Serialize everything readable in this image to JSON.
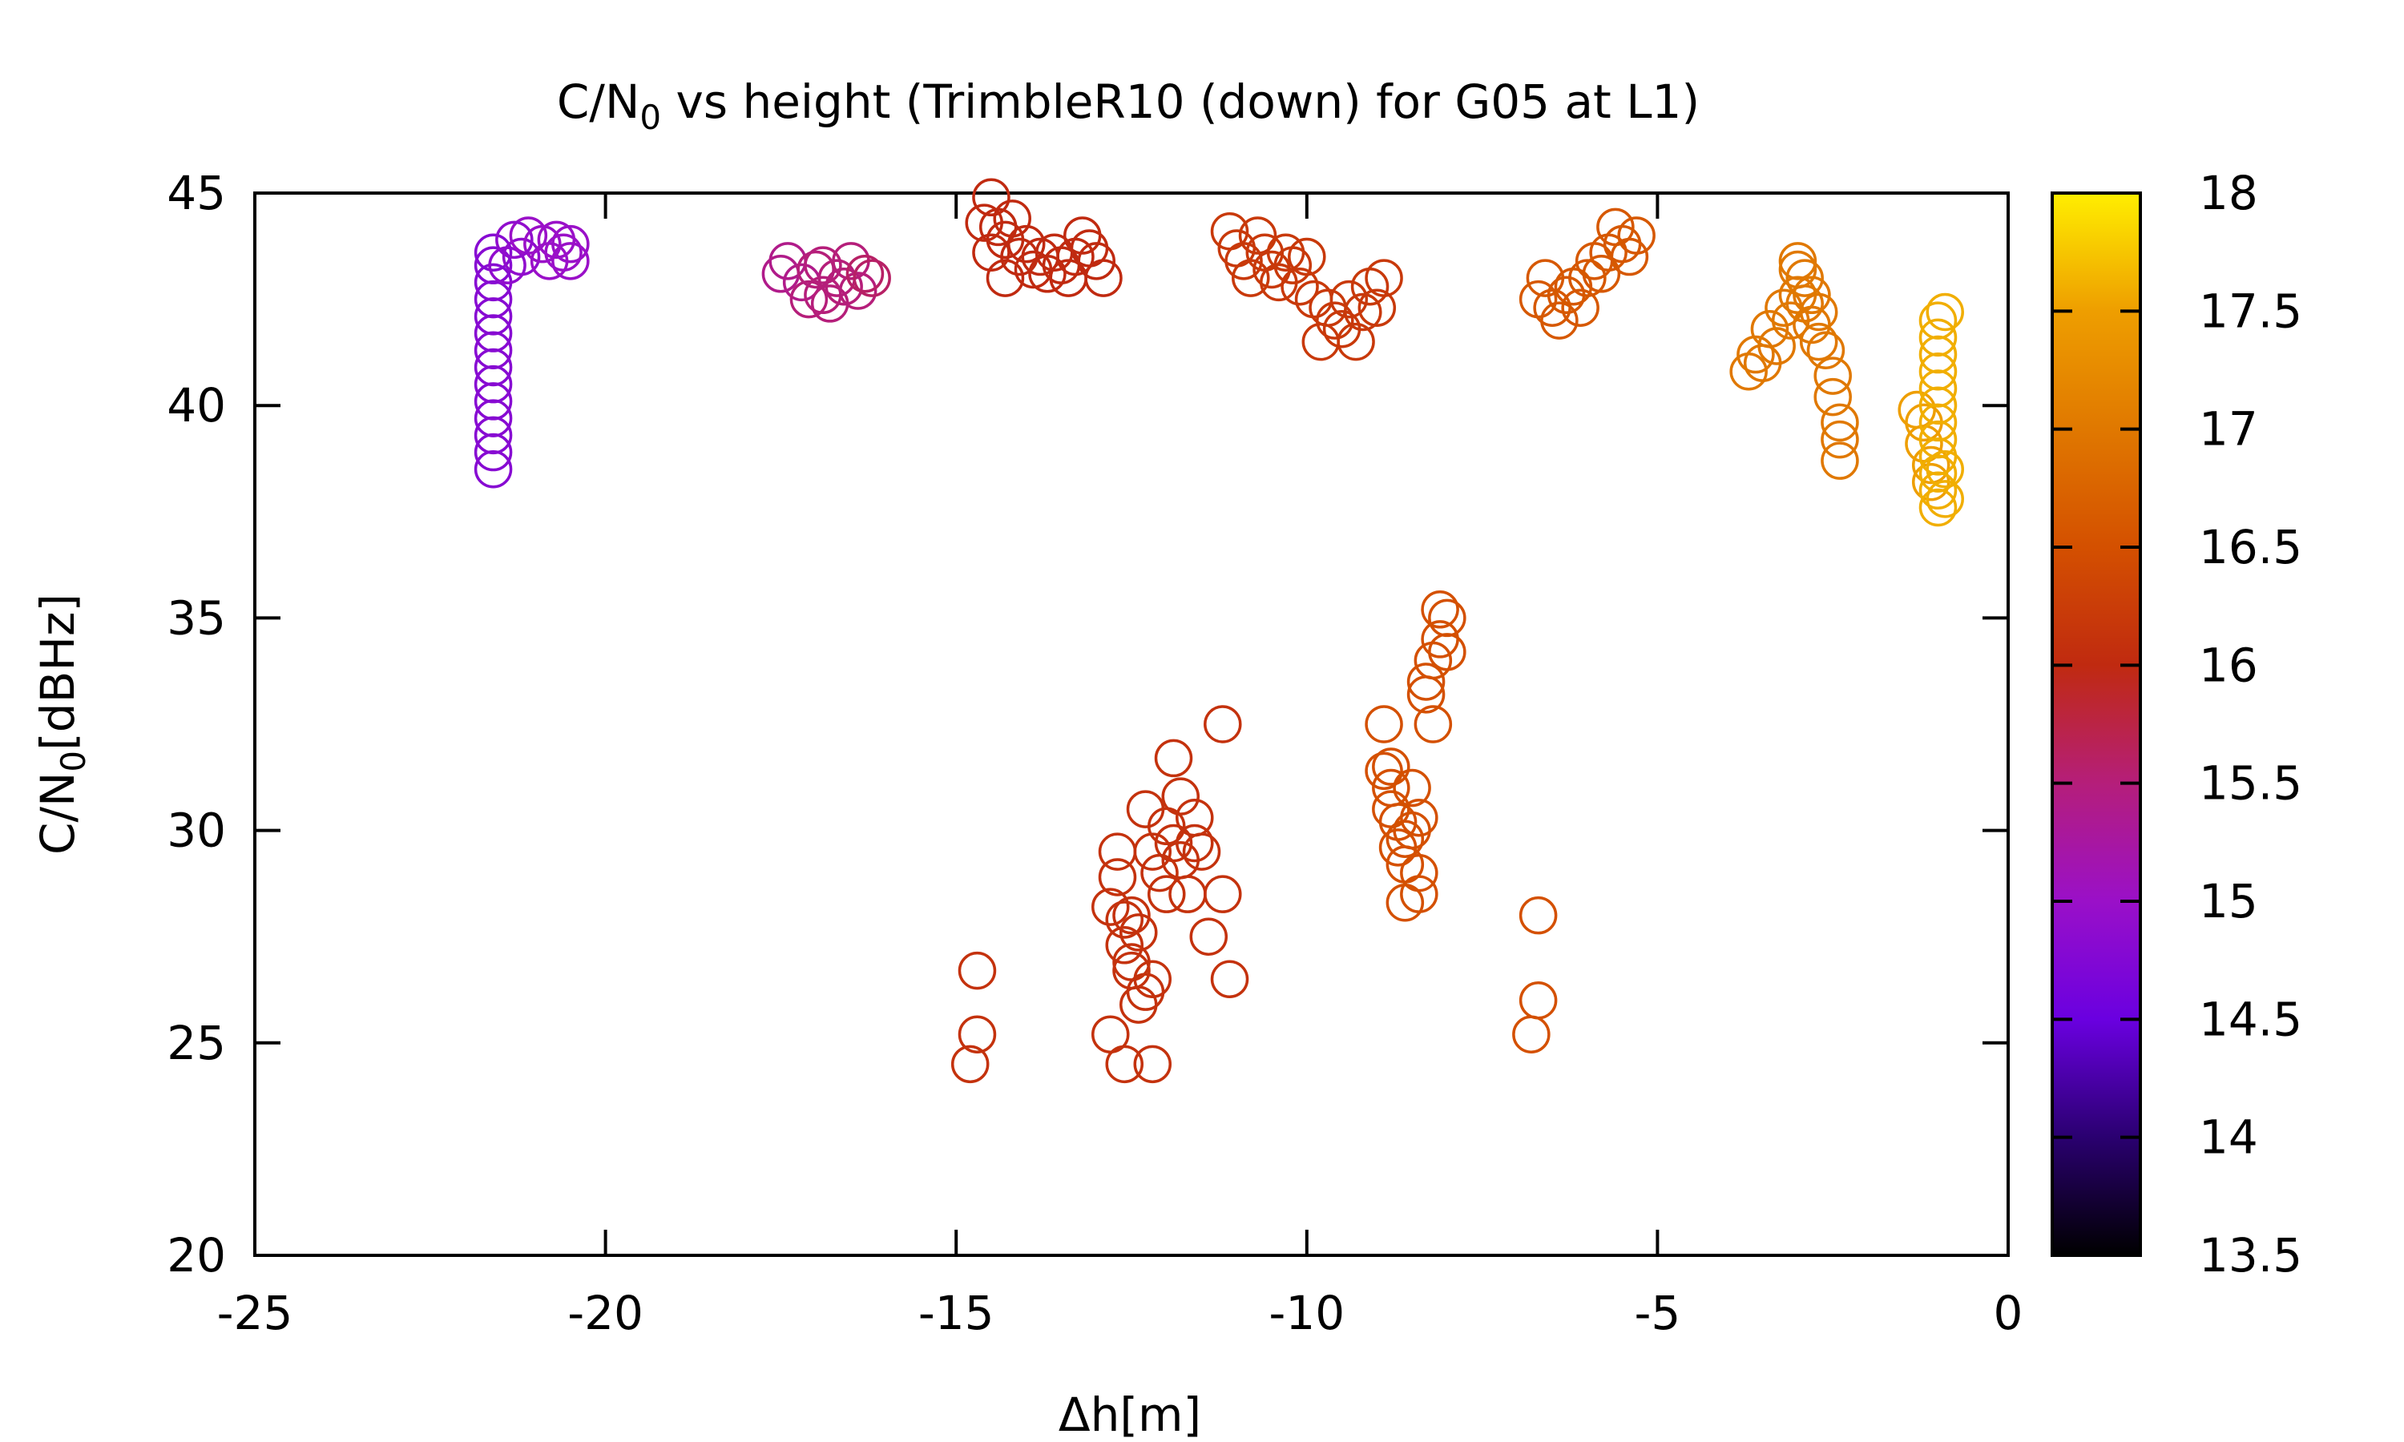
{
  "chart_data": {
    "type": "scatter",
    "title": {
      "prefix": "C/N",
      "subscript": "0",
      "suffix": " vs height (TrimbleR10 (down) for G05 at L1)"
    },
    "xlabel": "Δh[m]",
    "ylabel": {
      "prefix": "C/N",
      "subscript": "0",
      "suffix": "[dBHz]"
    },
    "xlim": [
      -25,
      0
    ],
    "ylim": [
      20,
      45
    ],
    "x_ticks": [
      "-25",
      "-20",
      "-15",
      "-10",
      "-5",
      "0"
    ],
    "y_ticks": [
      "20",
      "25",
      "30",
      "35",
      "40",
      "45"
    ],
    "colorbar": {
      "range": [
        13.5,
        18
      ],
      "ticks": [
        "13.5",
        "14",
        "14.5",
        "15",
        "15.5",
        "16",
        "16.5",
        "17",
        "17.5",
        "18"
      ],
      "palette": [
        "#000000",
        "#2a0070",
        "#6a00e0",
        "#9a10c8",
        "#b51e7a",
        "#c02a10",
        "#d45000",
        "#e07800",
        "#ee9e00",
        "#ffee00"
      ]
    },
    "marker": "open-circle",
    "points": [
      [
        -21.6,
        38.5,
        14.8
      ],
      [
        -21.6,
        38.9,
        14.8
      ],
      [
        -21.6,
        39.3,
        14.8
      ],
      [
        -21.6,
        39.7,
        14.8
      ],
      [
        -21.6,
        40.1,
        14.8
      ],
      [
        -21.6,
        40.5,
        14.8
      ],
      [
        -21.6,
        40.9,
        14.8
      ],
      [
        -21.6,
        41.3,
        14.8
      ],
      [
        -21.6,
        41.7,
        14.8
      ],
      [
        -21.6,
        42.1,
        14.8
      ],
      [
        -21.6,
        42.5,
        14.8
      ],
      [
        -21.6,
        42.9,
        14.8
      ],
      [
        -21.6,
        43.3,
        14.8
      ],
      [
        -21.6,
        43.6,
        14.8
      ],
      [
        -21.4,
        43.3,
        14.9
      ],
      [
        -21.2,
        43.5,
        14.9
      ],
      [
        -21.1,
        44.0,
        15.0
      ],
      [
        -20.9,
        43.8,
        15.0
      ],
      [
        -20.8,
        43.4,
        15.0
      ],
      [
        -20.7,
        43.9,
        15.0
      ],
      [
        -20.6,
        43.6,
        15.0
      ],
      [
        -20.5,
        43.4,
        15.0
      ],
      [
        -20.5,
        43.8,
        15.0
      ],
      [
        -21.3,
        43.9,
        14.9
      ],
      [
        -17.5,
        43.1,
        15.4
      ],
      [
        -17.4,
        43.4,
        15.4
      ],
      [
        -17.2,
        42.9,
        15.4
      ],
      [
        -17.0,
        43.2,
        15.5
      ],
      [
        -16.9,
        42.6,
        15.5
      ],
      [
        -16.8,
        42.4,
        15.5
      ],
      [
        -16.7,
        43.0,
        15.5
      ],
      [
        -16.6,
        42.8,
        15.5
      ],
      [
        -16.5,
        43.4,
        15.5
      ],
      [
        -16.4,
        42.7,
        15.5
      ],
      [
        -16.3,
        43.1,
        15.6
      ],
      [
        -16.2,
        43.0,
        15.6
      ],
      [
        -16.9,
        43.3,
        15.5
      ],
      [
        -17.1,
        42.5,
        15.5
      ],
      [
        -14.5,
        44.9,
        16.0
      ],
      [
        -14.5,
        43.6,
        16.0
      ],
      [
        -14.4,
        44.2,
        16.0
      ],
      [
        -14.3,
        43.9,
        16.0
      ],
      [
        -14.2,
        44.4,
        16.0
      ],
      [
        -14.1,
        43.5,
        16.0
      ],
      [
        -14.0,
        43.8,
        16.0
      ],
      [
        -13.9,
        43.2,
        16.0
      ],
      [
        -13.8,
        43.5,
        16.0
      ],
      [
        -13.7,
        43.1,
        16.0
      ],
      [
        -13.6,
        43.6,
        16.0
      ],
      [
        -13.5,
        43.3,
        16.0
      ],
      [
        -13.4,
        43.0,
        16.0
      ],
      [
        -13.3,
        43.5,
        16.0
      ],
      [
        -13.2,
        44.0,
        16.0
      ],
      [
        -13.1,
        43.7,
        16.0
      ],
      [
        -13.0,
        43.4,
        16.0
      ],
      [
        -12.9,
        43.0,
        16.0
      ],
      [
        -14.6,
        44.3,
        16.0
      ],
      [
        -14.3,
        43.0,
        16.0
      ],
      [
        -11.1,
        44.1,
        16.2
      ],
      [
        -11.0,
        43.7,
        16.2
      ],
      [
        -10.9,
        43.4,
        16.2
      ],
      [
        -10.8,
        43.0,
        16.2
      ],
      [
        -10.7,
        44.0,
        16.2
      ],
      [
        -10.6,
        43.6,
        16.2
      ],
      [
        -10.5,
        43.2,
        16.2
      ],
      [
        -10.4,
        42.9,
        16.2
      ],
      [
        -10.3,
        43.6,
        16.2
      ],
      [
        -10.2,
        43.3,
        16.2
      ],
      [
        -10.1,
        42.8,
        16.2
      ],
      [
        -10.0,
        43.5,
        16.2
      ],
      [
        -9.9,
        42.5,
        16.2
      ],
      [
        -9.8,
        41.5,
        16.2
      ],
      [
        -9.7,
        42.3,
        16.2
      ],
      [
        -9.6,
        42.0,
        16.2
      ],
      [
        -9.5,
        41.8,
        16.2
      ],
      [
        -9.4,
        42.5,
        16.2
      ],
      [
        -9.3,
        41.5,
        16.2
      ],
      [
        -9.2,
        42.2,
        16.2
      ],
      [
        -9.1,
        42.8,
        16.2
      ],
      [
        -9.0,
        42.3,
        16.2
      ],
      [
        -8.9,
        43.0,
        16.2
      ],
      [
        -6.7,
        42.5,
        16.6
      ],
      [
        -6.6,
        43.0,
        16.6
      ],
      [
        -6.5,
        42.3,
        16.6
      ],
      [
        -6.4,
        42.0,
        16.6
      ],
      [
        -6.3,
        42.6,
        16.6
      ],
      [
        -6.2,
        42.8,
        16.6
      ],
      [
        -6.1,
        42.3,
        16.6
      ],
      [
        -6.0,
        43.0,
        16.6
      ],
      [
        -5.9,
        43.4,
        16.6
      ],
      [
        -5.8,
        43.1,
        16.6
      ],
      [
        -5.7,
        43.6,
        16.6
      ],
      [
        -5.6,
        44.2,
        16.6
      ],
      [
        -5.5,
        43.8,
        16.6
      ],
      [
        -5.4,
        43.5,
        16.6
      ],
      [
        -5.3,
        44.0,
        16.6
      ],
      [
        -3.7,
        40.8,
        17.0
      ],
      [
        -3.6,
        41.2,
        17.0
      ],
      [
        -3.5,
        41.0,
        17.0
      ],
      [
        -3.4,
        41.8,
        17.0
      ],
      [
        -3.3,
        41.4,
        17.0
      ],
      [
        -3.2,
        42.3,
        17.0
      ],
      [
        -3.1,
        42.0,
        17.0
      ],
      [
        -3.0,
        43.2,
        17.0
      ],
      [
        -3.0,
        42.6,
        17.0
      ],
      [
        -2.9,
        43.0,
        17.0
      ],
      [
        -2.8,
        42.6,
        17.0
      ],
      [
        -2.8,
        41.9,
        17.0
      ],
      [
        -2.7,
        42.2,
        17.0
      ],
      [
        -2.7,
        41.5,
        17.0
      ],
      [
        -2.6,
        41.3,
        17.0
      ],
      [
        -2.5,
        40.7,
        17.0
      ],
      [
        -2.5,
        40.2,
        17.0
      ],
      [
        -2.4,
        39.6,
        17.0
      ],
      [
        -2.4,
        39.2,
        17.0
      ],
      [
        -2.4,
        38.7,
        17.0
      ],
      [
        -3.0,
        43.4,
        17.0
      ],
      [
        -2.9,
        42.4,
        17.0
      ],
      [
        -1.3,
        39.9,
        17.5
      ],
      [
        -1.2,
        39.6,
        17.5
      ],
      [
        -1.2,
        39.1,
        17.5
      ],
      [
        -1.1,
        38.6,
        17.5
      ],
      [
        -1.1,
        38.2,
        17.5
      ],
      [
        -1.0,
        37.6,
        17.6
      ],
      [
        -1.0,
        38.0,
        17.6
      ],
      [
        -1.0,
        38.4,
        17.6
      ],
      [
        -1.0,
        38.8,
        17.6
      ],
      [
        -1.0,
        39.2,
        17.6
      ],
      [
        -1.0,
        39.6,
        17.6
      ],
      [
        -1.0,
        40.0,
        17.6
      ],
      [
        -1.0,
        40.4,
        17.6
      ],
      [
        -1.0,
        40.8,
        17.6
      ],
      [
        -1.0,
        41.2,
        17.6
      ],
      [
        -1.0,
        41.6,
        17.6
      ],
      [
        -1.0,
        42.0,
        17.6
      ],
      [
        -0.9,
        42.2,
        17.6
      ],
      [
        -0.9,
        37.8,
        17.6
      ],
      [
        -0.9,
        38.5,
        17.6
      ],
      [
        -14.7,
        26.7,
        16.1
      ],
      [
        -14.7,
        25.2,
        16.1
      ],
      [
        -14.8,
        24.5,
        16.1
      ],
      [
        -12.7,
        29.5,
        16.1
      ],
      [
        -12.7,
        28.9,
        16.1
      ],
      [
        -12.8,
        28.2,
        16.1
      ],
      [
        -12.6,
        27.9,
        16.1
      ],
      [
        -12.6,
        27.3,
        16.1
      ],
      [
        -12.5,
        26.7,
        16.1
      ],
      [
        -12.5,
        26.9,
        16.1
      ],
      [
        -12.4,
        27.6,
        16.1
      ],
      [
        -12.3,
        26.2,
        16.1
      ],
      [
        -12.2,
        26.5,
        16.1
      ],
      [
        -12.3,
        30.5,
        16.1
      ],
      [
        -12.2,
        29.5,
        16.1
      ],
      [
        -12.1,
        29.0,
        16.1
      ],
      [
        -12.0,
        30.1,
        16.1
      ],
      [
        -12.0,
        28.5,
        16.1
      ],
      [
        -11.9,
        31.7,
        16.1
      ],
      [
        -11.8,
        30.8,
        16.1
      ],
      [
        -11.8,
        29.3,
        16.1
      ],
      [
        -11.7,
        28.5,
        16.1
      ],
      [
        -11.6,
        30.3,
        16.1
      ],
      [
        -11.6,
        29.7,
        16.1
      ],
      [
        -11.5,
        29.5,
        16.1
      ],
      [
        -11.4,
        27.5,
        16.1
      ],
      [
        -11.2,
        32.5,
        16.1
      ],
      [
        -11.2,
        28.5,
        16.1
      ],
      [
        -11.1,
        26.5,
        16.1
      ],
      [
        -12.8,
        25.2,
        16.1
      ],
      [
        -12.6,
        24.5,
        16.1
      ],
      [
        -12.2,
        24.5,
        16.1
      ],
      [
        -12.4,
        25.9,
        16.1
      ],
      [
        -12.5,
        28.0,
        16.1
      ],
      [
        -11.9,
        29.7,
        16.1
      ],
      [
        -8.9,
        32.5,
        16.5
      ],
      [
        -8.9,
        31.4,
        16.5
      ],
      [
        -8.8,
        31.0,
        16.5
      ],
      [
        -8.8,
        30.5,
        16.5
      ],
      [
        -8.7,
        30.2,
        16.5
      ],
      [
        -8.7,
        29.6,
        16.5
      ],
      [
        -8.6,
        29.2,
        16.5
      ],
      [
        -8.6,
        28.3,
        16.5
      ],
      [
        -8.5,
        31.0,
        16.5
      ],
      [
        -8.5,
        30.0,
        16.5
      ],
      [
        -8.4,
        30.3,
        16.5
      ],
      [
        -8.4,
        29.0,
        16.5
      ],
      [
        -8.4,
        28.5,
        16.5
      ],
      [
        -8.3,
        33.2,
        16.5
      ],
      [
        -8.3,
        33.5,
        16.5
      ],
      [
        -8.2,
        34.0,
        16.5
      ],
      [
        -8.2,
        32.5,
        16.5
      ],
      [
        -8.1,
        35.2,
        16.5
      ],
      [
        -8.1,
        34.5,
        16.5
      ],
      [
        -8.0,
        35.0,
        16.5
      ],
      [
        -8.0,
        34.2,
        16.5
      ],
      [
        -8.8,
        31.5,
        16.5
      ],
      [
        -8.6,
        29.8,
        16.5
      ],
      [
        -6.7,
        28.0,
        16.5
      ],
      [
        -6.7,
        26.0,
        16.5
      ],
      [
        -6.8,
        25.2,
        16.5
      ]
    ]
  }
}
